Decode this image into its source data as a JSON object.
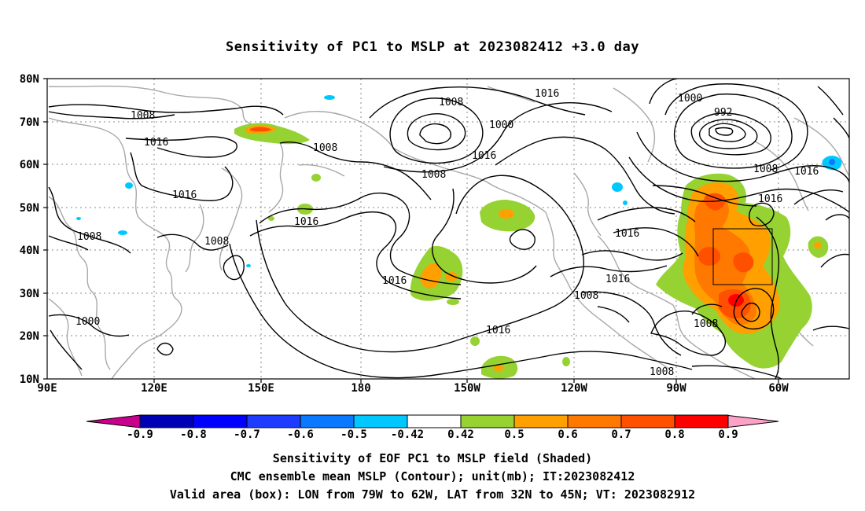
{
  "title": "Sensitivity of PC1 to MSLP at 2023082412 +3.0 day",
  "lat_labels": [
    "80N",
    "70N",
    "60N",
    "50N",
    "40N",
    "30N",
    "20N",
    "10N"
  ],
  "lon_labels": [
    "90E",
    "120E",
    "150E",
    "180",
    "150W",
    "120W",
    "90W",
    "60W"
  ],
  "contour_labels": [
    {
      "text": "1008"
    },
    {
      "text": "1016"
    },
    {
      "text": "1000"
    },
    {
      "text": "1008"
    },
    {
      "text": "1008"
    },
    {
      "text": "1016"
    },
    {
      "text": "1008"
    },
    {
      "text": "1000"
    },
    {
      "text": "1016"
    },
    {
      "text": "1008"
    },
    {
      "text": "1016"
    },
    {
      "text": "1016"
    },
    {
      "text": "1016"
    },
    {
      "text": "1008"
    },
    {
      "text": "1016"
    },
    {
      "text": "1016"
    },
    {
      "text": "1008"
    },
    {
      "text": "1000"
    },
    {
      "text": "1000"
    },
    {
      "text": "992"
    },
    {
      "text": "1008"
    },
    {
      "text": "1016"
    },
    {
      "text": "1016"
    },
    {
      "text": "1016"
    },
    {
      "text": "1016"
    },
    {
      "text": "1008"
    },
    {
      "text": "1008"
    },
    {
      "text": "1008"
    }
  ],
  "colorbar": {
    "labels": [
      "-0.9",
      "-0.8",
      "-0.7",
      "-0.6",
      "-0.5",
      "-0.42",
      "0.42",
      "0.5",
      "0.6",
      "0.7",
      "0.8",
      "0.9"
    ],
    "colors": [
      "#0000b4",
      "#0000ff",
      "#1e3cff",
      "#0a78ff",
      "#00c8ff",
      "#ffffff",
      "#96d232",
      "#ffa000",
      "#ff7800",
      "#ff5000",
      "#ff0000"
    ],
    "end_low": "#c8008c",
    "end_high": "#ffa0c8"
  },
  "footer": {
    "line1": "Sensitivity of EOF PC1 to MSLP field (Shaded)",
    "line2": "CMC ensemble mean MSLP (Contour); unit(mb); IT:2023082412",
    "line3": "Valid area (box): LON from 79W to 62W, LAT from 32N to 45N; VT: 2023082912"
  }
}
